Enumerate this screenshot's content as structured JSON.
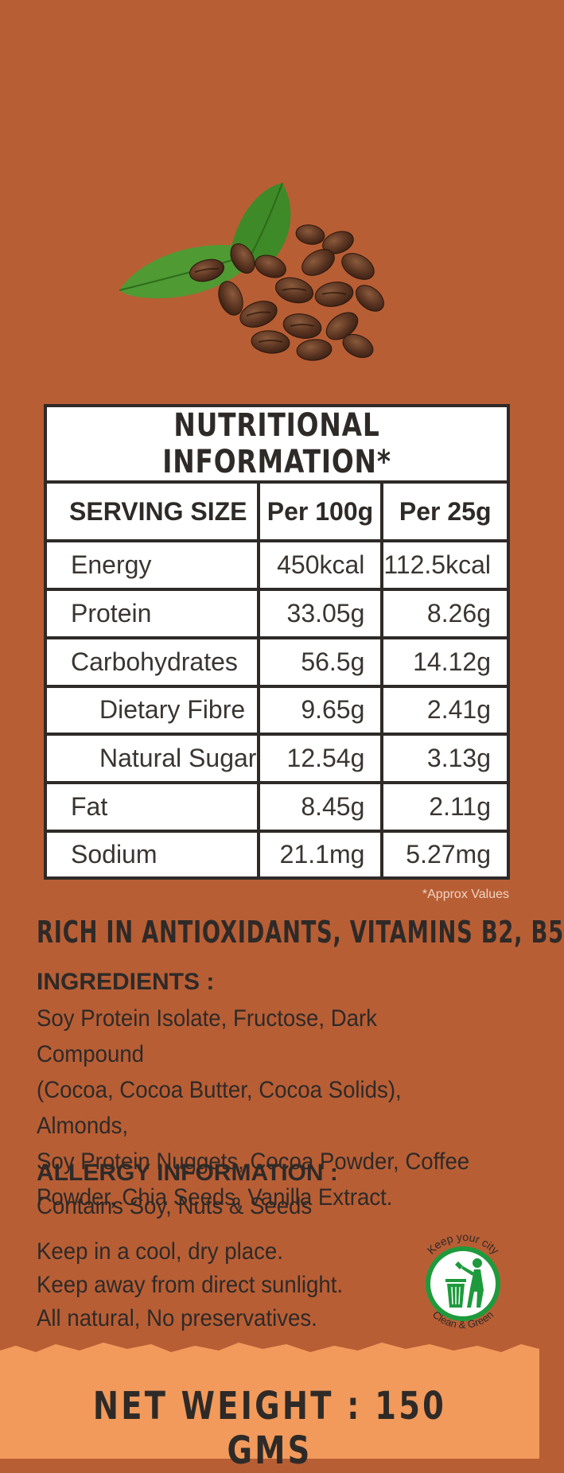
{
  "nutrition": {
    "title": "NUTRITIONAL INFORMATION*",
    "headers": [
      "SERVING SIZE",
      "Per 100g",
      "Per 25g"
    ],
    "rows": [
      {
        "label": "Energy",
        "per100": "450kcal",
        "per25": "112.5kcal"
      },
      {
        "label": "Protein",
        "per100": "33.05g",
        "per25": "8.26g"
      },
      {
        "label": "Carbohydrates",
        "per100": "56.5g",
        "per25": "14.12g"
      },
      {
        "label": "Dietary Fibre",
        "per100": "9.65g",
        "per25": "2.41g"
      },
      {
        "label": "Natural Sugar",
        "per100": "12.54g",
        "per25": "3.13g"
      },
      {
        "label": "Fat",
        "per100": "8.45g",
        "per25": "2.11g"
      },
      {
        "label": "Sodium",
        "per100": "21.1mg",
        "per25": "5.27mg"
      }
    ],
    "footnote": "*Approx Values"
  },
  "claim": "RICH IN ANTIOXIDANTS, VITAMINS B2, B5",
  "ingredients": {
    "heading": "INGREDIENTS :",
    "lines": [
      "Soy Protein Isolate, Fructose, Dark Compound",
      "(Cocoa, Cocoa Butter, Cocoa Solids), Almonds,",
      "Soy Protein Nuggets, Cocoa Powder, Coffee",
      "Powder, Chia Seeds, Vanilla Extract."
    ]
  },
  "allergy": {
    "heading": "ALLERGY INFORMATION :",
    "text": "Contains Soy, Nuts & Seeds"
  },
  "storage": [
    "Keep in a cool, dry place.",
    "Keep away from direct sunlight.",
    "All natural, No preservatives."
  ],
  "badge": {
    "top": "Keep your city",
    "bottom": "Clean & Green",
    "icon": "recycle-bin-person-icon"
  },
  "net_weight": "NET WEIGHT : 150 GMS",
  "colors": {
    "background": "#b85e35",
    "band": "#f29a5b",
    "ink": "#2e2a28",
    "badge_green": "#1e9a3c"
  }
}
